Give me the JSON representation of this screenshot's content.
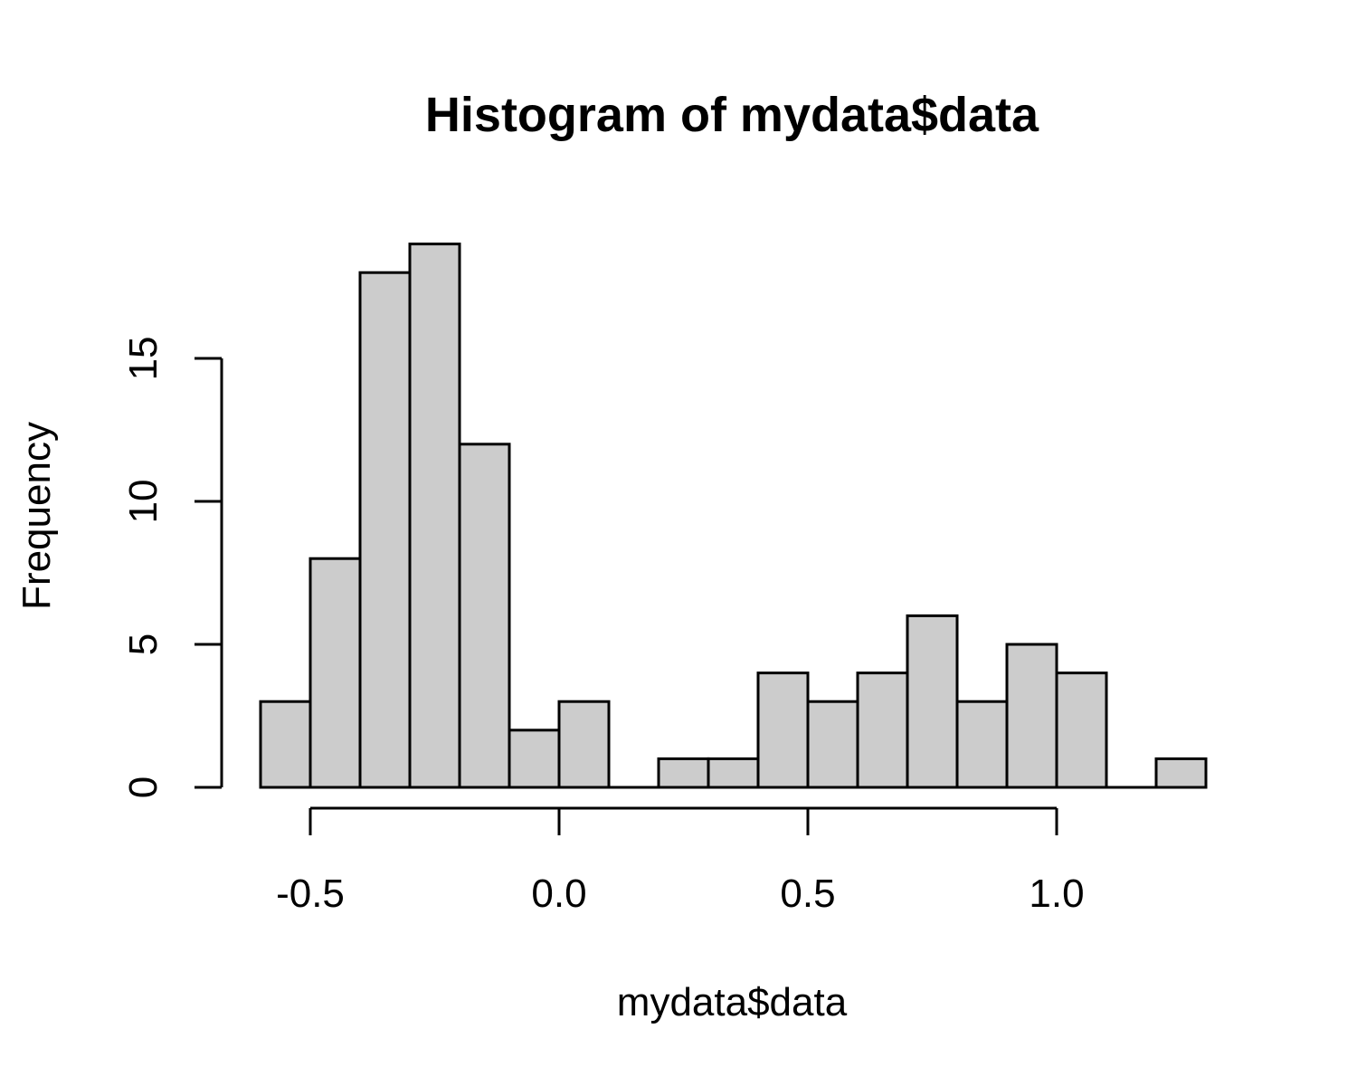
{
  "chart_data": {
    "type": "bar",
    "title": "Histogram of mydata$data",
    "xlabel": "mydata$data",
    "ylabel": "Frequency",
    "xlim": [
      -0.6,
      1.3
    ],
    "ylim": [
      0,
      19
    ],
    "bin_width": 0.1,
    "bins": [
      {
        "x0": -0.6,
        "x1": -0.5,
        "count": 3
      },
      {
        "x0": -0.5,
        "x1": -0.4,
        "count": 8
      },
      {
        "x0": -0.4,
        "x1": -0.3,
        "count": 18
      },
      {
        "x0": -0.3,
        "x1": -0.2,
        "count": 19
      },
      {
        "x0": -0.2,
        "x1": -0.1,
        "count": 12
      },
      {
        "x0": -0.1,
        "x1": 0.0,
        "count": 2
      },
      {
        "x0": 0.0,
        "x1": 0.1,
        "count": 3
      },
      {
        "x0": 0.1,
        "x1": 0.2,
        "count": 0
      },
      {
        "x0": 0.2,
        "x1": 0.3,
        "count": 1
      },
      {
        "x0": 0.3,
        "x1": 0.4,
        "count": 1
      },
      {
        "x0": 0.4,
        "x1": 0.5,
        "count": 4
      },
      {
        "x0": 0.5,
        "x1": 0.6,
        "count": 3
      },
      {
        "x0": 0.6,
        "x1": 0.7,
        "count": 4
      },
      {
        "x0": 0.7,
        "x1": 0.8,
        "count": 6
      },
      {
        "x0": 0.8,
        "x1": 0.9,
        "count": 3
      },
      {
        "x0": 0.9,
        "x1": 1.0,
        "count": 5
      },
      {
        "x0": 1.0,
        "x1": 1.1,
        "count": 4
      },
      {
        "x0": 1.1,
        "x1": 1.2,
        "count": 0
      },
      {
        "x0": 1.2,
        "x1": 1.3,
        "count": 1
      }
    ],
    "x_ticks": [
      {
        "value": -0.5,
        "label": "-0.5"
      },
      {
        "value": 0.0,
        "label": "0.0"
      },
      {
        "value": 0.5,
        "label": "0.5"
      },
      {
        "value": 1.0,
        "label": "1.0"
      }
    ],
    "y_ticks": [
      {
        "value": 0,
        "label": "0"
      },
      {
        "value": 5,
        "label": "5"
      },
      {
        "value": 10,
        "label": "10"
      },
      {
        "value": 15,
        "label": "15"
      }
    ],
    "grid": false,
    "colors": {
      "bar_fill": "#cccccc",
      "bar_stroke": "#000000"
    }
  }
}
